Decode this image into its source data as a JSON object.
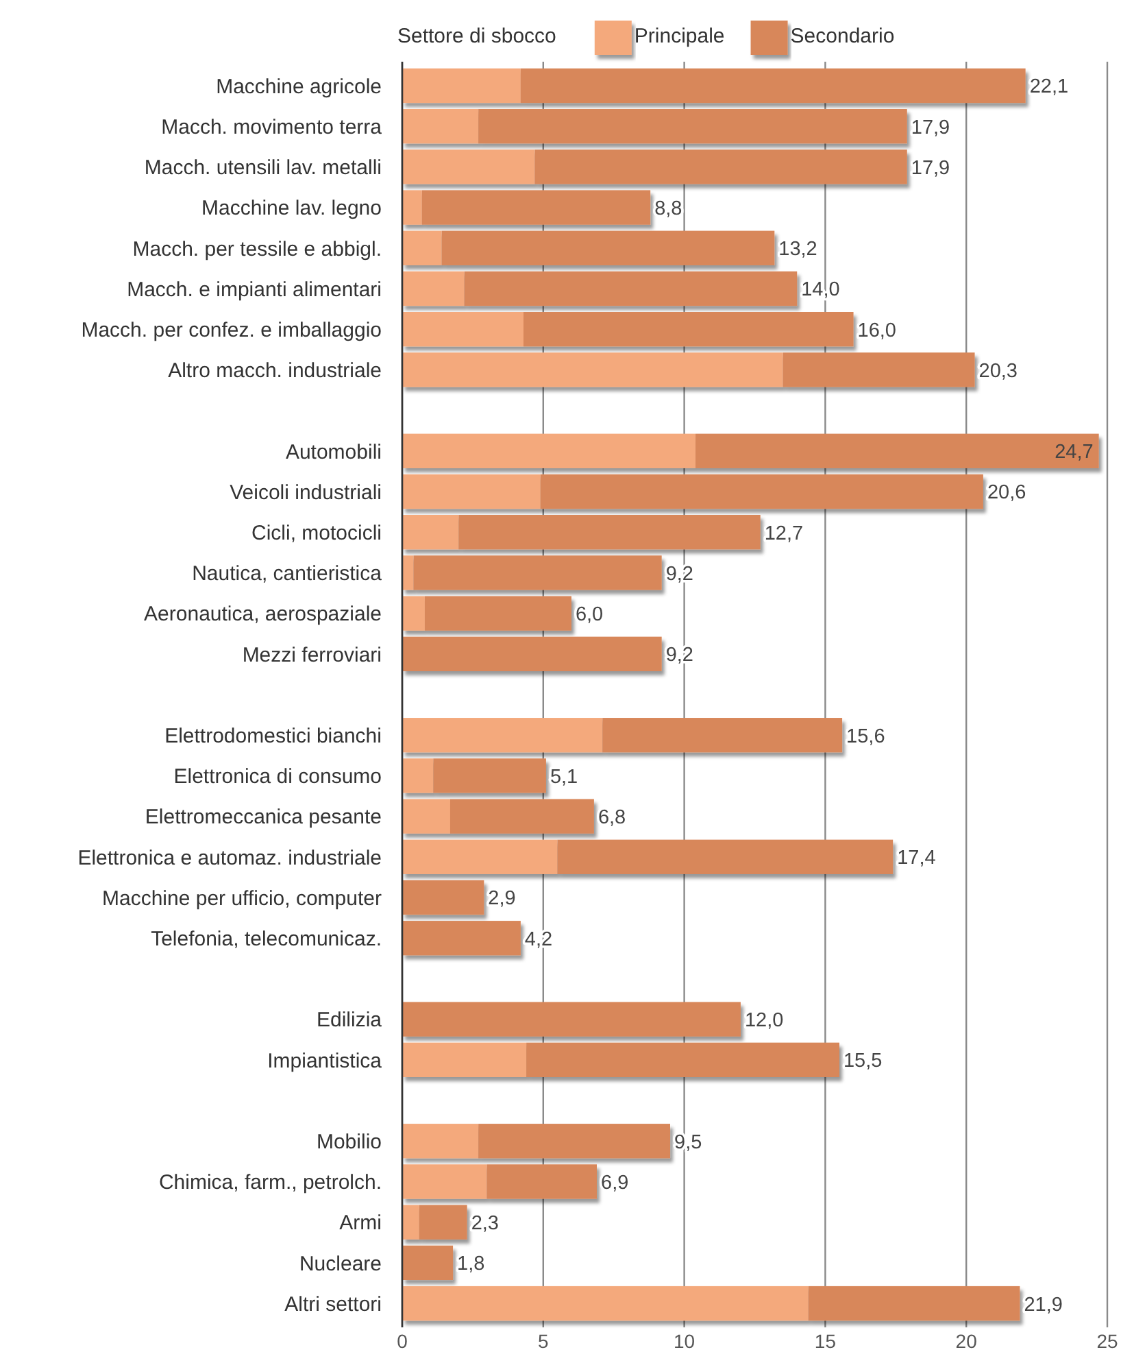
{
  "chart_data": {
    "type": "bar",
    "orientation": "horizontal",
    "stacked": true,
    "legend_title": "Settore di sbocco",
    "legend": "top",
    "categories": [
      "Macchine agricole",
      "Macch. movimento terra",
      "Macch. utensili lav. metalli",
      "Macchine lav. legno",
      "Macch. per tessile e abbigl.",
      "Macch. e impianti alimentari",
      "Macch. per confez. e imballaggio",
      "Altro macch. industriale",
      null,
      "Automobili",
      "Veicoli industriali",
      "Cicli, motocicli",
      "Nautica, cantieristica",
      "Aeronautica, aerospaziale",
      "Mezzi ferroviari",
      null,
      "Elettrodomestici bianchi",
      "Elettronica di consumo",
      "Elettromeccanica pesante",
      "Elettronica e automaz. industriale",
      "Macchine per ufficio, computer",
      "Telefonia, telecomunicaz.",
      null,
      "Edilizia",
      "Impiantistica",
      null,
      "Mobilio",
      "Chimica, farm., petrolch.",
      "Armi",
      "Nucleare",
      "Altri settori"
    ],
    "series": [
      {
        "name": "Principale",
        "color": "#f4a97c",
        "values": [
          4.2,
          2.7,
          4.7,
          0.7,
          1.4,
          2.2,
          4.3,
          13.5,
          null,
          10.4,
          4.9,
          2.0,
          0.4,
          0.8,
          null,
          null,
          7.1,
          1.1,
          1.7,
          5.5,
          null,
          null,
          null,
          null,
          4.4,
          null,
          2.7,
          3.0,
          0.6,
          null,
          14.4
        ]
      },
      {
        "name": "Secondario",
        "color": "#d8875a",
        "values": [
          17.9,
          15.2,
          13.2,
          8.1,
          11.8,
          11.8,
          11.7,
          6.8,
          null,
          14.3,
          15.7,
          10.7,
          8.8,
          5.2,
          9.2,
          null,
          8.5,
          4.0,
          5.1,
          11.9,
          2.9,
          4.2,
          null,
          12.0,
          11.1,
          null,
          6.8,
          3.9,
          1.7,
          1.8,
          7.5
        ]
      }
    ],
    "totals": [
      "22,1",
      "17,9",
      "17,9",
      "8,8",
      "13,2",
      "14,0",
      "16,0",
      "20,3",
      null,
      "24,7",
      "20,6",
      "12,7",
      "9,2",
      "6,0",
      "9,2",
      null,
      "15,6",
      "5,1",
      "6,8",
      "17,4",
      "2,9",
      "4,2",
      null,
      "12,0",
      "15,5",
      null,
      "9,5",
      "6,9",
      "2,3",
      "1,8",
      "21,9"
    ],
    "xlim": [
      0,
      25
    ],
    "xticks": [
      0,
      5,
      10,
      15,
      20,
      25
    ],
    "grid": "x"
  }
}
